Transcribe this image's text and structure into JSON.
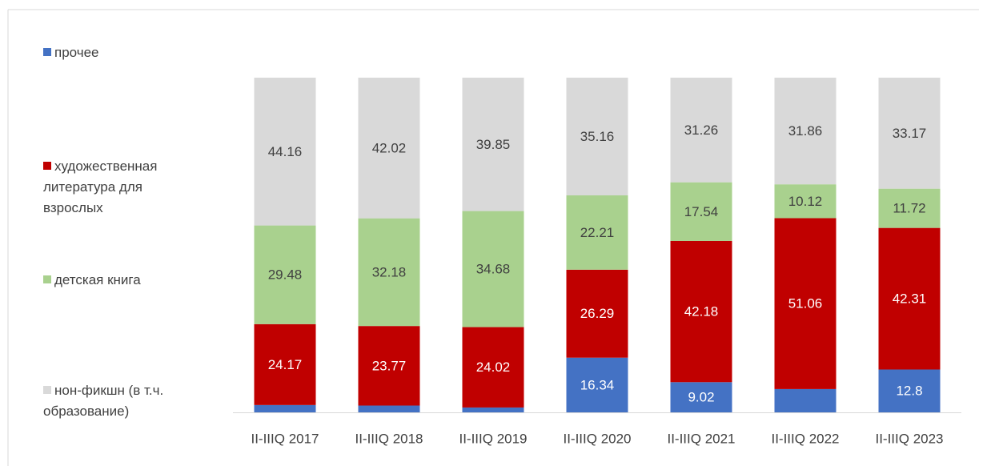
{
  "chart_data": {
    "type": "stacked_bar",
    "categories": [
      "II-IIIQ 2017",
      "II-IIIQ 2018",
      "II-IIIQ 2019",
      "II-IIIQ 2020",
      "II-IIIQ 2021",
      "II-IIIQ 2022",
      "II-IIIQ 2023"
    ],
    "series": [
      {
        "name": "прочее",
        "color": "#4472c4",
        "values": [
          2.19,
          2.03,
          1.45,
          16.34,
          9.02,
          6.96,
          12.8
        ]
      },
      {
        "name": "художественная литература для взрослых",
        "color": "#c00000",
        "values": [
          24.17,
          23.77,
          24.02,
          26.29,
          42.18,
          51.06,
          42.31
        ]
      },
      {
        "name": "детская книга",
        "color": "#a9d18e",
        "values": [
          29.48,
          32.18,
          34.68,
          22.21,
          17.54,
          10.12,
          11.72
        ]
      },
      {
        "name": "нон-фикшн (в т.ч. образование)",
        "color": "#d9d9d9",
        "values": [
          44.16,
          42.02,
          39.85,
          35.16,
          31.26,
          31.86,
          33.17
        ]
      }
    ],
    "legend": "left"
  }
}
